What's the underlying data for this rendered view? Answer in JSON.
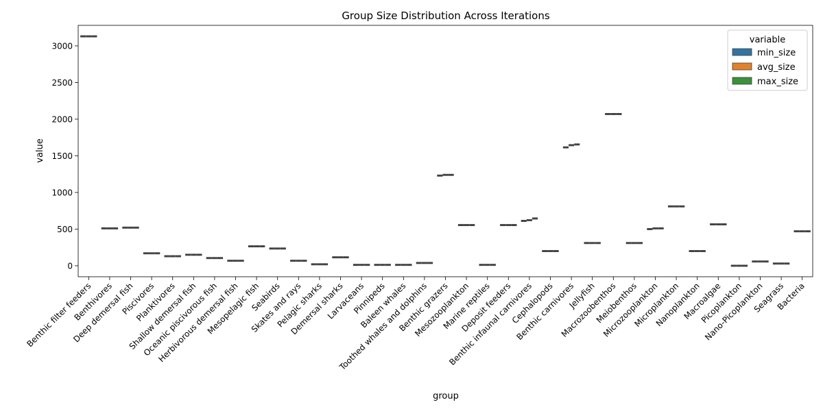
{
  "chart_data": {
    "type": "box",
    "title": "Group Size Distribution Across Iterations",
    "xlabel": "group",
    "ylabel": "value",
    "ylim": [
      -150,
      3280
    ],
    "yticks": [
      0,
      500,
      1000,
      1500,
      2000,
      2500,
      3000
    ],
    "grid": false,
    "legend": {
      "title": "variable",
      "position": "top-right",
      "entries": [
        "min_size",
        "avg_size",
        "max_size"
      ]
    },
    "series": [
      {
        "name": "min_size",
        "color": "#3274a1"
      },
      {
        "name": "avg_size",
        "color": "#e1812c"
      },
      {
        "name": "max_size",
        "color": "#3a923a"
      }
    ],
    "categories": [
      "Benthic filter feeders",
      "Benthivores",
      "Deep demersal fish",
      "Piscivores",
      "Planktivores",
      "Shallow demersal fish",
      "Oceanic piscivorous fish",
      "Herbivorous demersal fish",
      "Mesopelagic fish",
      "Seabirds",
      "Skates and rays",
      "Pelagic sharks",
      "Demersal sharks",
      "Larvaceans",
      "Pinnipeds",
      "Baleen whales",
      "Toothed whales and dolphins",
      "Benthic grazers",
      "Mesozooplankton",
      "Marine reptiles",
      "Deposit feeders",
      "Benthic infaunal carnivores",
      "Cephalopods",
      "Benthic carnivores",
      "Jellyfish",
      "Macrozoobenthos",
      "Meiobenthos",
      "Microzooplankton",
      "Microplankton",
      "Nanoplankton",
      "Macroalgae",
      "Picoplankton",
      "Nano-Picoplankton",
      "Seagrass",
      "Bacteria"
    ],
    "values": {
      "min_size": [
        3130,
        510,
        520,
        170,
        130,
        150,
        105,
        68,
        265,
        235,
        68,
        20,
        115,
        12,
        12,
        12,
        38,
        1230,
        555,
        12,
        555,
        612,
        200,
        1615,
        310,
        2070,
        310,
        500,
        810,
        200,
        565,
        0,
        58,
        30,
        470
      ],
      "avg_size": [
        3130,
        510,
        520,
        170,
        130,
        150,
        105,
        68,
        265,
        235,
        68,
        20,
        115,
        12,
        12,
        12,
        38,
        1240,
        555,
        12,
        555,
        622,
        200,
        1645,
        310,
        2070,
        310,
        510,
        810,
        200,
        565,
        0,
        58,
        30,
        470
      ],
      "max_size": [
        3130,
        510,
        520,
        170,
        130,
        150,
        105,
        68,
        265,
        235,
        68,
        20,
        115,
        12,
        12,
        12,
        38,
        1240,
        555,
        12,
        555,
        645,
        200,
        1655,
        310,
        2070,
        310,
        510,
        810,
        200,
        565,
        0,
        58,
        30,
        470
      ]
    }
  }
}
